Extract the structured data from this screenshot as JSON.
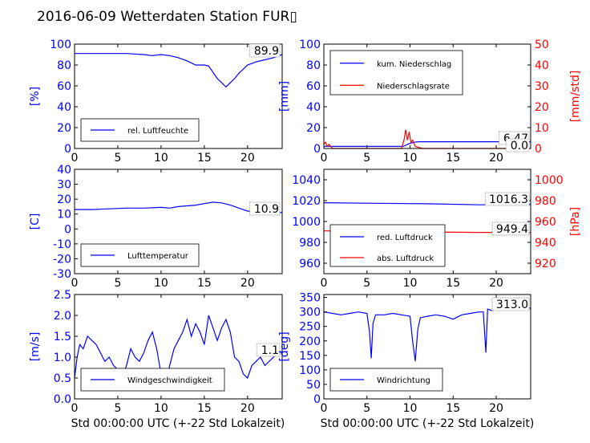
{
  "title": "2016-06-09 Wetterdaten Station FUR",
  "title_glyph": "▯",
  "colors": {
    "blue": "#0000ff",
    "red": "#ff0000",
    "black": "#000000"
  },
  "xlabel": "Std 00:00:00 UTC (+-22 Std Lokalzeit)",
  "chart_data": [
    {
      "id": "humidity",
      "type": "line",
      "xlim": [
        0,
        24
      ],
      "ylim": [
        0,
        100
      ],
      "xticks": [
        "0",
        "5",
        "10",
        "15",
        "20"
      ],
      "yticks": [
        "0",
        "20",
        "40",
        "60",
        "80",
        "100"
      ],
      "ylabel": "[%]",
      "ylabel_color": "#0000ff",
      "ytick_color": "#0000ff",
      "annotation": "89.9",
      "legend": [
        "rel. Luftfeuchte"
      ],
      "legend_colors": [
        "#0000ff"
      ],
      "legend_position": "lower-left",
      "series": [
        {
          "name": "rel. Luftfeuchte",
          "color": "#0000ff",
          "x": [
            0,
            2,
            4,
            6,
            8,
            9,
            10,
            11,
            12,
            13,
            14,
            15,
            15.5,
            16,
            16.5,
            17,
            17.5,
            18,
            18.5,
            19,
            19.5,
            20,
            21,
            22,
            23,
            24
          ],
          "y": [
            91,
            91,
            91,
            91,
            90,
            89,
            90,
            89,
            87,
            84,
            80,
            80,
            79,
            73,
            67,
            63,
            59,
            63,
            67,
            72,
            76,
            80,
            83,
            85,
            87,
            90
          ]
        }
      ]
    },
    {
      "id": "precip",
      "type": "line",
      "xlim": [
        0,
        24
      ],
      "ylim": [
        0,
        100
      ],
      "ylim_right": [
        0,
        50
      ],
      "xticks": [
        "0",
        "5",
        "10",
        "15",
        "20"
      ],
      "yticks": [
        "0",
        "20",
        "40",
        "60",
        "80",
        "100"
      ],
      "yticks_right": [
        "0",
        "10",
        "20",
        "30",
        "40",
        "50"
      ],
      "ylabel": "[mm]",
      "ylabel_color": "#0000ff",
      "ytick_color": "#0000ff",
      "ylabel_right": "[mm/std]",
      "ylabel_right_color": "#ff0000",
      "ytick_right_color": "#ff0000",
      "annotation": "6.47",
      "annotation2": "0.0",
      "legend": [
        "kum. Niederschlag",
        "Niederschlagsrate"
      ],
      "legend_colors": [
        "#0000ff",
        "#ff0000"
      ],
      "legend_position": "upper-left",
      "series": [
        {
          "name": "kum. Niederschlag",
          "color": "#0000ff",
          "axis": "left",
          "x": [
            0,
            9.2,
            9.5,
            10,
            10.5,
            11,
            24
          ],
          "y": [
            2,
            2,
            3,
            5,
            6,
            6.5,
            6.5
          ]
        },
        {
          "name": "Niederschlagsrate",
          "color": "#ff0000",
          "axis": "right",
          "x": [
            0,
            0.2,
            0.4,
            0.6,
            1,
            9,
            9.3,
            9.5,
            9.7,
            9.9,
            10.1,
            10.3,
            10.6,
            11,
            11.5,
            24
          ],
          "y": [
            2,
            3,
            1,
            2,
            0,
            0,
            4,
            9,
            4,
            8,
            3,
            4,
            1,
            0.5,
            0,
            0
          ]
        }
      ]
    },
    {
      "id": "temperature",
      "type": "line",
      "xlim": [
        0,
        24
      ],
      "ylim": [
        -30,
        40
      ],
      "xticks": [
        "0",
        "5",
        "10",
        "15",
        "20"
      ],
      "yticks": [
        "-30",
        "-20",
        "-10",
        "0",
        "10",
        "20",
        "30",
        "40"
      ],
      "ylabel": "[C]",
      "ylabel_color": "#0000ff",
      "ytick_color": "#0000ff",
      "annotation": "10.9",
      "legend": [
        "Lufttemperatur"
      ],
      "legend_colors": [
        "#0000ff"
      ],
      "legend_position": "lower-left",
      "series": [
        {
          "name": "Lufttemperatur",
          "color": "#0000ff",
          "x": [
            0,
            2,
            4,
            6,
            8,
            10,
            11,
            12,
            13,
            14,
            15,
            16,
            17,
            18,
            19,
            20,
            21,
            22,
            23,
            24
          ],
          "y": [
            13,
            13,
            13.5,
            14,
            14,
            14.5,
            14,
            15,
            15.5,
            16,
            17,
            18,
            17.5,
            16,
            14,
            12,
            11.5,
            11,
            11,
            11
          ]
        }
      ]
    },
    {
      "id": "pressure",
      "type": "line",
      "xlim": [
        0,
        24
      ],
      "ylim": [
        950,
        1050
      ],
      "ylim_right": [
        910,
        1010
      ],
      "xticks": [
        "0",
        "5",
        "10",
        "15",
        "20"
      ],
      "yticks": [
        "960",
        "980",
        "1000",
        "1020",
        "1040"
      ],
      "yticks_right": [
        "920",
        "940",
        "960",
        "980",
        "1000"
      ],
      "ylabel": "",
      "ytick_color": "#0000ff",
      "ylabel_right": "[hPa]",
      "ylabel_right_color": "#ff0000",
      "ytick_right_color": "#ff0000",
      "annotation": "1016.3",
      "annotation2": "949.4",
      "legend": [
        "red. Luftdruck",
        "abs. Luftdruck"
      ],
      "legend_colors": [
        "#0000ff",
        "#ff0000"
      ],
      "legend_position": "lower-left",
      "series": [
        {
          "name": "red. Luftdruck",
          "color": "#0000ff",
          "axis": "left",
          "x": [
            0,
            6,
            12,
            18,
            24
          ],
          "y": [
            1018,
            1017.5,
            1017,
            1016,
            1016.3
          ]
        },
        {
          "name": "abs. Luftdruck",
          "color": "#ff0000",
          "axis": "right",
          "x": [
            0,
            6,
            12,
            18,
            24
          ],
          "y": [
            951,
            950.5,
            950,
            949.5,
            949.4
          ]
        }
      ]
    },
    {
      "id": "wind_speed",
      "type": "line",
      "xlim": [
        0,
        24
      ],
      "ylim": [
        0,
        2.5
      ],
      "xticks": [
        "0",
        "5",
        "10",
        "15",
        "20"
      ],
      "yticks": [
        "0.0",
        "0.5",
        "1.0",
        "1.5",
        "2.0",
        "2.5"
      ],
      "ylabel": "[m/s]",
      "ylabel_color": "#0000ff",
      "ytick_color": "#0000ff",
      "xlabel_shown": true,
      "annotation": "1.1",
      "legend": [
        "Windgeschwindigkeit"
      ],
      "legend_colors": [
        "#0000ff"
      ],
      "legend_position": "lower-left",
      "series": [
        {
          "name": "Windgeschwindigkeit",
          "color": "#0000ff",
          "x": [
            0,
            0.3,
            0.6,
            1,
            1.5,
            2,
            2.5,
            3,
            3.5,
            4,
            4.5,
            5,
            5.5,
            6,
            6.5,
            7,
            7.5,
            8,
            8.5,
            9,
            9.5,
            10,
            10.5,
            11,
            11.5,
            12,
            12.5,
            13,
            13.5,
            14,
            14.5,
            15,
            15.5,
            16,
            16.5,
            17,
            17.5,
            18,
            18.5,
            19,
            19.5,
            20,
            20.5,
            21,
            21.5,
            22,
            22.5,
            23,
            23.5,
            24
          ],
          "y": [
            0.5,
            1.0,
            1.3,
            1.2,
            1.5,
            1.4,
            1.3,
            1.1,
            0.9,
            1.0,
            0.8,
            0.7,
            0.5,
            0.8,
            1.2,
            1.0,
            0.9,
            1.1,
            1.4,
            1.6,
            1.2,
            0.6,
            0.4,
            0.8,
            1.2,
            1.4,
            1.6,
            1.9,
            1.5,
            1.8,
            1.6,
            1.3,
            2.0,
            1.7,
            1.4,
            1.7,
            1.9,
            1.6,
            1.0,
            0.9,
            0.6,
            0.5,
            0.8,
            0.9,
            1.0,
            0.8,
            0.9,
            1.0,
            1.1,
            1.1
          ]
        }
      ]
    },
    {
      "id": "wind_direction",
      "type": "line",
      "xlim": [
        0,
        24
      ],
      "ylim": [
        0,
        360
      ],
      "xticks": [
        "0",
        "5",
        "10",
        "15",
        "20"
      ],
      "yticks": [
        "0",
        "50",
        "100",
        "150",
        "200",
        "250",
        "300",
        "350"
      ],
      "ylabel": "[deg]",
      "ylabel_color": "#0000ff",
      "ytick_color": "#0000ff",
      "xlabel_shown": true,
      "annotation": "313.0",
      "legend": [
        "Windrichtung"
      ],
      "legend_colors": [
        "#0000ff"
      ],
      "legend_position": "lower-left",
      "series": [
        {
          "name": "Windrichtung",
          "color": "#0000ff",
          "x": [
            0,
            1,
            2,
            3,
            4,
            5,
            5.3,
            5.5,
            5.7,
            6,
            7,
            8,
            9,
            10,
            10.3,
            10.6,
            10.9,
            11.2,
            12,
            13,
            14,
            15,
            16,
            17,
            18,
            18.5,
            18.8,
            19,
            19.5,
            20,
            21,
            22,
            23,
            24
          ],
          "y": [
            300,
            295,
            290,
            295,
            300,
            295,
            230,
            140,
            260,
            290,
            290,
            295,
            290,
            285,
            200,
            130,
            240,
            280,
            285,
            290,
            285,
            275,
            290,
            295,
            300,
            300,
            160,
            310,
            305,
            315,
            310,
            320,
            315,
            313
          ]
        }
      ]
    }
  ]
}
